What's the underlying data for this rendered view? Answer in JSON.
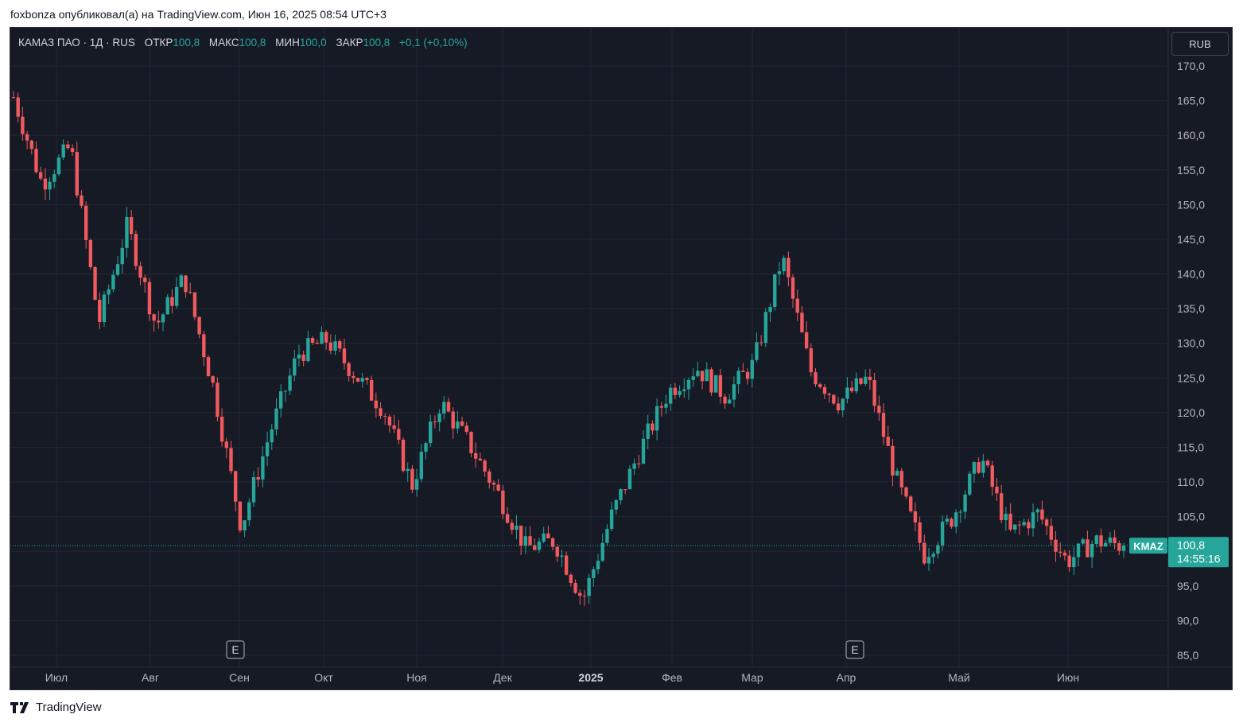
{
  "publisher_line": "foxbonza опубликовал(а) на TradingView.com, Июн 16, 2025 08:54 UTC+3",
  "legend": {
    "symbol": "КАМАЗ ПАО · 1Д · RUS",
    "open_label": "ОТКР",
    "open": "100,8",
    "high_label": "МАКС",
    "high": "100,8",
    "low_label": "МИН",
    "low": "100,0",
    "close_label": "ЗАКР",
    "close": "100,8",
    "change": "+0,1 (+0,10%)"
  },
  "currency_button": "RUB",
  "ticker_tag": "KMAZ",
  "last_price_label": {
    "price": "100,8",
    "countdown": "14:55:16"
  },
  "earnings_markers": [
    {
      "label": "E",
      "month": "Сен"
    },
    {
      "label": "E",
      "month": "Апр"
    }
  ],
  "brand": "TradingView",
  "colors": {
    "up": "#26a69a",
    "down": "#f05a5e",
    "background": "#161a25",
    "grid": "#232733",
    "text": "#b2b5be"
  },
  "chart_data": {
    "type": "candlestick",
    "title": "КАМАЗ ПАО · 1Д · RUS",
    "y_unit": "RUB",
    "ylim": [
      85,
      171.5
    ],
    "y_ticks": [
      "85,0",
      "90,0",
      "95,0",
      "100,0",
      "105,0",
      "110,0",
      "115,0",
      "120,0",
      "125,0",
      "130,0",
      "135,0",
      "140,0",
      "145,0",
      "150,0",
      "155,0",
      "160,0",
      "165,0",
      "170,0"
    ],
    "x_ticks": [
      "Июл",
      "Авг",
      "Сен",
      "Окт",
      "Ноя",
      "Дек",
      "2025",
      "Фев",
      "Мар",
      "Апр",
      "Май",
      "Июн"
    ],
    "grid": true,
    "last_price": 100.8,
    "series": [
      {
        "name": "КАМАЗ ПАО",
        "points": [
          {
            "month": "Июн 2024",
            "close": 165.5
          },
          {
            "month": "Июл 2024",
            "close": 153.0
          },
          {
            "month": "Июл 2024",
            "close": 158.5
          },
          {
            "month": "Июл 2024",
            "close": 133.0
          },
          {
            "month": "Авг 2024",
            "close": 147.0
          },
          {
            "month": "Авг 2024",
            "close": 132.5
          },
          {
            "month": "Авг 2024",
            "close": 139.5
          },
          {
            "month": "Авг 2024",
            "close": 124.0
          },
          {
            "month": "Сен 2024",
            "close": 103.5
          },
          {
            "month": "Сен 2024",
            "close": 117.0
          },
          {
            "month": "Сен 2024",
            "close": 128.5
          },
          {
            "month": "Окт 2024",
            "close": 130.5
          },
          {
            "month": "Окт 2024",
            "close": 125.5
          },
          {
            "month": "Окт 2024",
            "close": 120.5
          },
          {
            "month": "Ноя 2024",
            "close": 109.5
          },
          {
            "month": "Ноя 2024",
            "close": 121.5
          },
          {
            "month": "Ноя 2024",
            "close": 115.5
          },
          {
            "month": "Ноя 2024",
            "close": 108.5
          },
          {
            "month": "Дек 2024",
            "close": 100.5
          },
          {
            "month": "Дек 2024",
            "close": 101.5
          },
          {
            "month": "Дек 2024",
            "close": 93.0
          },
          {
            "month": "Дек 2024",
            "close": 105.0
          },
          {
            "month": "Янв 2025",
            "close": 114.5
          },
          {
            "month": "Янв 2025",
            "close": 123.0
          },
          {
            "month": "Фев 2025",
            "close": 126.5
          },
          {
            "month": "Фев 2025",
            "close": 122.5
          },
          {
            "month": "Фев 2025",
            "close": 127.0
          },
          {
            "month": "Мар 2025",
            "close": 142.5
          },
          {
            "month": "Мар 2025",
            "close": 126.0
          },
          {
            "month": "Мар 2025",
            "close": 121.5
          },
          {
            "month": "Мар 2025",
            "close": 125.0
          },
          {
            "month": "Апр 2025",
            "close": 110.5
          },
          {
            "month": "Апр 2025",
            "close": 99.5
          },
          {
            "month": "Апр 2025",
            "close": 105.0
          },
          {
            "month": "Май 2025",
            "close": 113.5
          },
          {
            "month": "Май 2025",
            "close": 102.5
          },
          {
            "month": "Май 2025",
            "close": 105.5
          },
          {
            "month": "Май 2025",
            "close": 98.5
          },
          {
            "month": "Июн 2025",
            "close": 101.5
          },
          {
            "month": "Июн 2025",
            "close": 100.8
          }
        ]
      }
    ]
  }
}
